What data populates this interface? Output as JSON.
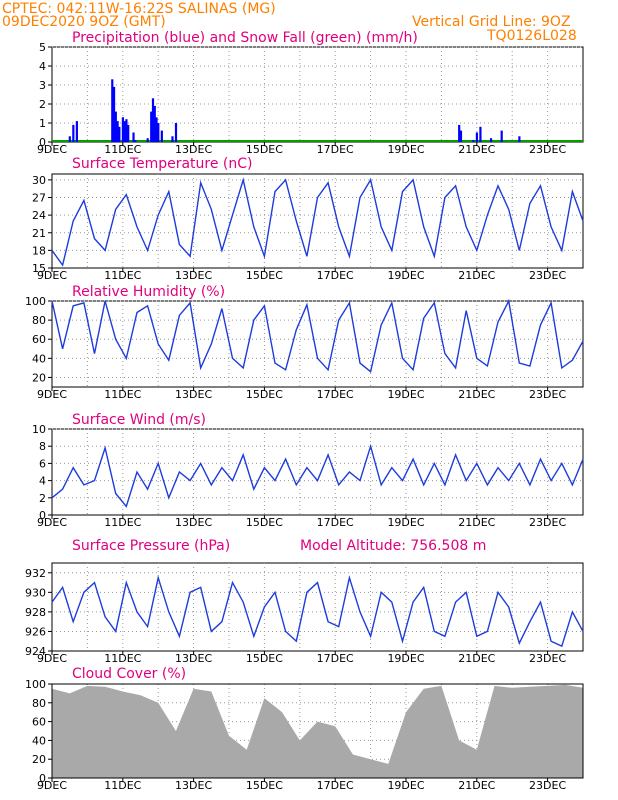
{
  "header": {
    "line1": "CPTEC:  042:11W-16:22S  SALINAS (MG)",
    "line2": "09DEC2020 9OZ (GMT)",
    "grid_note": "Vertical Grid Line: 9OZ",
    "code": "TQ0126L028"
  },
  "colors": {
    "header": "#ff8000",
    "titles": "#e0007f",
    "precip": "#0000ff",
    "snow": "#00a000",
    "line": "#1e3cdc",
    "cloud": "#a9a9a9"
  },
  "date_labels": [
    "9DEC",
    "11DEC",
    "13DEC",
    "15DEC",
    "17DEC",
    "19DEC",
    "21DEC",
    "23DEC"
  ],
  "chart_data": [
    {
      "type": "bar",
      "title": "Precipitation (blue) and Snow Fall (green) (mm/h)",
      "ylim": [
        0,
        5
      ],
      "yticks": [
        0,
        1,
        2,
        3,
        4,
        5
      ],
      "series": [
        {
          "name": "Precipitation",
          "x": [
            0.5,
            0.6,
            0.7,
            1.7,
            1.75,
            1.8,
            1.85,
            1.9,
            2.0,
            2.05,
            2.1,
            2.15,
            2.3,
            2.35,
            2.7,
            2.8,
            2.85,
            2.9,
            2.95,
            3.0,
            3.1,
            3.4,
            3.5,
            11.5,
            11.55,
            11.9,
            12.0,
            12.1,
            12.4,
            12.7,
            13.2
          ],
          "values": [
            0.3,
            0.9,
            1.1,
            3.3,
            2.9,
            1.6,
            1.1,
            0.8,
            1.3,
            1.1,
            1.2,
            0.9,
            0.5,
            0.1,
            0.2,
            1.6,
            2.3,
            1.9,
            1.3,
            1.0,
            0.6,
            0.3,
            1.0,
            0.9,
            0.6,
            0.1,
            0.5,
            0.8,
            0.2,
            0.6,
            0.3
          ]
        },
        {
          "name": "Snow Fall",
          "values": [
            0
          ]
        }
      ]
    },
    {
      "type": "line",
      "title": "Surface Temperature (nC)",
      "ylim": [
        15,
        31
      ],
      "yticks": [
        15,
        18,
        21,
        24,
        27,
        30
      ],
      "x": [
        0,
        0.3,
        0.6,
        0.9,
        1.2,
        1.5,
        1.8,
        2.1,
        2.4,
        2.7,
        3.0,
        3.3,
        3.6,
        3.9,
        4.2,
        4.5,
        4.8,
        5.1,
        5.4,
        5.7,
        6.0,
        6.3,
        6.6,
        6.9,
        7.2,
        7.5,
        7.8,
        8.1,
        8.4,
        8.7,
        9.0,
        9.3,
        9.6,
        9.9,
        10.2,
        10.5,
        10.8,
        11.1,
        11.4,
        11.7,
        12.0,
        12.3,
        12.6,
        12.9,
        13.2,
        13.5,
        13.8,
        14.1,
        14.4,
        14.7,
        15.0
      ],
      "values": [
        18,
        15.5,
        23,
        26.5,
        20,
        18,
        25,
        27.5,
        22,
        18,
        24,
        28,
        19,
        17,
        29.5,
        25,
        18,
        24,
        30,
        22,
        17,
        28,
        30,
        23,
        17,
        27,
        29.5,
        22,
        17,
        27,
        30,
        22,
        18,
        28,
        30,
        22,
        17,
        27,
        29,
        22,
        18,
        24,
        29,
        25,
        18,
        26,
        29,
        22,
        18,
        28,
        23
      ]
    },
    {
      "type": "line",
      "title": "Relative Humidity (%)",
      "ylim": [
        10,
        100
      ],
      "yticks": [
        20,
        40,
        60,
        80,
        100
      ],
      "x": [
        0,
        0.3,
        0.6,
        0.9,
        1.2,
        1.5,
        1.8,
        2.1,
        2.4,
        2.7,
        3.0,
        3.3,
        3.6,
        3.9,
        4.2,
        4.5,
        4.8,
        5.1,
        5.4,
        5.7,
        6.0,
        6.3,
        6.6,
        6.9,
        7.2,
        7.5,
        7.8,
        8.1,
        8.4,
        8.7,
        9.0,
        9.3,
        9.6,
        9.9,
        10.2,
        10.5,
        10.8,
        11.1,
        11.4,
        11.7,
        12.0,
        12.3,
        12.6,
        12.9,
        13.2,
        13.5,
        13.8,
        14.1,
        14.4,
        14.7,
        15.0
      ],
      "values": [
        100,
        50,
        95,
        98,
        45,
        100,
        60,
        40,
        88,
        95,
        55,
        38,
        85,
        98,
        30,
        55,
        92,
        40,
        30,
        80,
        95,
        35,
        28,
        70,
        96,
        40,
        28,
        80,
        98,
        35,
        26,
        75,
        98,
        40,
        28,
        82,
        98,
        45,
        30,
        90,
        40,
        32,
        78,
        100,
        35,
        32,
        75,
        98,
        30,
        38,
        58
      ]
    },
    {
      "type": "line",
      "title": "Surface Wind (m/s)",
      "ylim": [
        0,
        10
      ],
      "yticks": [
        0,
        2,
        4,
        6,
        8,
        10
      ],
      "x": [
        0,
        0.3,
        0.6,
        0.9,
        1.2,
        1.5,
        1.8,
        2.1,
        2.4,
        2.7,
        3.0,
        3.3,
        3.6,
        3.9,
        4.2,
        4.5,
        4.8,
        5.1,
        5.4,
        5.7,
        6.0,
        6.3,
        6.6,
        6.9,
        7.2,
        7.5,
        7.8,
        8.1,
        8.4,
        8.7,
        9.0,
        9.3,
        9.6,
        9.9,
        10.2,
        10.5,
        10.8,
        11.1,
        11.4,
        11.7,
        12.0,
        12.3,
        12.6,
        12.9,
        13.2,
        13.5,
        13.8,
        14.1,
        14.4,
        14.7,
        15.0
      ],
      "values": [
        2,
        3,
        5.5,
        3.5,
        4,
        7.8,
        2.5,
        1,
        5,
        3,
        6,
        2,
        5,
        4,
        6,
        3.5,
        5.5,
        4,
        7,
        3,
        5.5,
        4,
        6.5,
        3.5,
        5.5,
        4,
        7,
        3.5,
        5,
        4,
        8,
        3.5,
        5.5,
        4,
        6.5,
        3.5,
        6,
        3.5,
        7,
        4,
        6,
        3.5,
        5.5,
        4,
        6,
        3.5,
        6.5,
        4,
        6,
        3.5,
        6.5
      ]
    },
    {
      "type": "line",
      "title": "Surface Pressure (hPa)",
      "annotation": "Model Altitude: 756.508  m",
      "ylim": [
        924,
        933
      ],
      "yticks": [
        924,
        926,
        928,
        930,
        932
      ],
      "x": [
        0,
        0.3,
        0.6,
        0.9,
        1.2,
        1.5,
        1.8,
        2.1,
        2.4,
        2.7,
        3.0,
        3.3,
        3.6,
        3.9,
        4.2,
        4.5,
        4.8,
        5.1,
        5.4,
        5.7,
        6.0,
        6.3,
        6.6,
        6.9,
        7.2,
        7.5,
        7.8,
        8.1,
        8.4,
        8.7,
        9.0,
        9.3,
        9.6,
        9.9,
        10.2,
        10.5,
        10.8,
        11.1,
        11.4,
        11.7,
        12.0,
        12.3,
        12.6,
        12.9,
        13.2,
        13.5,
        13.8,
        14.1,
        14.4,
        14.7,
        15.0
      ],
      "values": [
        929,
        930.5,
        927,
        930,
        931,
        927.5,
        926,
        931,
        928,
        926.5,
        931.5,
        928,
        925.5,
        930,
        930.5,
        926,
        927,
        931,
        929,
        925.5,
        928.5,
        930,
        926,
        925,
        930,
        931,
        927,
        926.5,
        931.5,
        928,
        925.5,
        930,
        929,
        925,
        929,
        930.5,
        926,
        925.5,
        929,
        930,
        925.5,
        926,
        930,
        928.5,
        924.8,
        927,
        929,
        925,
        924.5,
        928,
        926
      ]
    },
    {
      "type": "area",
      "title": "Cloud Cover (%)",
      "ylim": [
        0,
        100
      ],
      "yticks": [
        0,
        20,
        40,
        60,
        80,
        100
      ],
      "x": [
        0,
        0.5,
        1.0,
        1.5,
        2.0,
        2.5,
        3.0,
        3.5,
        4.0,
        4.5,
        5.0,
        5.5,
        6.0,
        6.5,
        7.0,
        7.5,
        8.0,
        8.5,
        9.0,
        9.5,
        10.0,
        10.5,
        11.0,
        11.5,
        12.0,
        12.5,
        13.0,
        13.5,
        14.0,
        14.5,
        15.0
      ],
      "values": [
        95,
        90,
        98,
        97,
        92,
        88,
        80,
        50,
        95,
        92,
        45,
        30,
        85,
        70,
        40,
        60,
        55,
        25,
        20,
        15,
        70,
        95,
        98,
        40,
        30,
        98,
        96,
        97,
        98,
        99,
        96
      ]
    }
  ]
}
